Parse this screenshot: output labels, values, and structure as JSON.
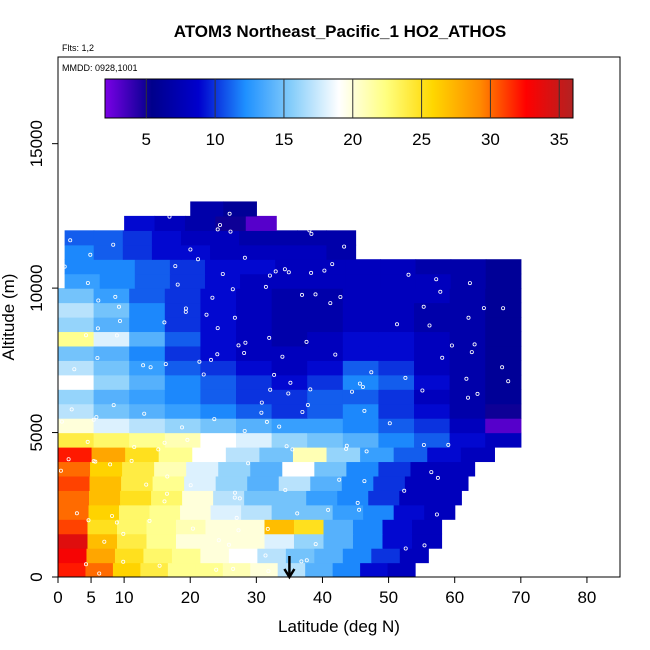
{
  "chart_data": {
    "type": "heatmap",
    "title": "ATOM3 Northeast_Pacific_1 HO2_ATHOS",
    "subtitle_lines": [
      "Flts: 1,2",
      "MMDD: 0928,1001"
    ],
    "xlabel": "Latitude (deg N)",
    "ylabel": "Altitude (m)",
    "xlim": [
      0,
      85
    ],
    "ylim": [
      0,
      18000
    ],
    "x_ticks": [
      0,
      5,
      10,
      20,
      30,
      40,
      50,
      60,
      70,
      80
    ],
    "y_ticks": [
      0,
      5000,
      10000,
      15000
    ],
    "colorbar": {
      "range": [
        2,
        36
      ],
      "ticks": [
        5,
        10,
        15,
        20,
        25,
        30,
        35
      ],
      "colors": [
        "#7a00e6",
        "#00008b",
        "#0000cd",
        "#1e90ff",
        "#87cefa",
        "#ffffff",
        "#ffff80",
        "#ffd700",
        "#ff8c00",
        "#ff0000",
        "#b22222"
      ],
      "placement": "top"
    },
    "arrow_marker_latitude": 35,
    "grid": false,
    "altitude_bins": [
      {
        "alt": 250,
        "lat_min": 0,
        "lat_max": 54,
        "values": [
          32,
          30,
          26,
          24,
          22,
          22,
          21,
          20,
          17,
          14,
          12,
          9,
          8
        ]
      },
      {
        "alt": 750,
        "lat_min": 0,
        "lat_max": 56,
        "values": [
          33,
          28,
          25,
          23,
          22,
          20,
          19,
          17,
          15,
          14,
          12,
          10,
          8
        ]
      },
      {
        "alt": 1250,
        "lat_min": 0,
        "lat_max": 58,
        "values": [
          34,
          27,
          24,
          22,
          20,
          20,
          20,
          18,
          16,
          14,
          12,
          9,
          8
        ]
      },
      {
        "alt": 1750,
        "lat_min": 0,
        "lat_max": 58,
        "values": [
          31,
          25,
          23,
          22,
          21,
          20,
          20,
          27,
          25,
          14,
          12,
          9,
          8
        ]
      },
      {
        "alt": 2250,
        "lat_min": 0,
        "lat_max": 60,
        "values": [
          30,
          26,
          23,
          22,
          20,
          18,
          17,
          15,
          15,
          13,
          12,
          9,
          8
        ]
      },
      {
        "alt": 2750,
        "lat_min": 0,
        "lat_max": 61,
        "values": [
          30,
          27,
          25,
          23,
          20,
          17,
          15,
          15,
          13,
          12,
          10,
          8,
          8
        ]
      },
      {
        "alt": 3250,
        "lat_min": 0,
        "lat_max": 62,
        "values": [
          31,
          27,
          24,
          22,
          18,
          16,
          14,
          17,
          14,
          12,
          10,
          8,
          8
        ]
      },
      {
        "alt": 3750,
        "lat_min": 0,
        "lat_max": 63,
        "values": [
          30,
          26,
          24,
          21,
          18,
          16,
          14,
          19,
          15,
          12,
          10,
          8,
          8
        ]
      },
      {
        "alt": 4250,
        "lat_min": 0,
        "lat_max": 66,
        "values": [
          32,
          28,
          25,
          22,
          19,
          17,
          15,
          21,
          16,
          13,
          11,
          9,
          8
        ]
      },
      {
        "alt": 4750,
        "lat_min": 0,
        "lat_max": 70,
        "values": [
          24,
          23,
          22,
          21,
          19,
          18,
          16,
          15,
          14,
          12,
          11,
          9,
          8
        ]
      },
      {
        "alt": 5250,
        "lat_min": 0,
        "lat_max": 70,
        "values": [
          20,
          18,
          17,
          16,
          15,
          14,
          13,
          13,
          12,
          11,
          10,
          8,
          3
        ]
      },
      {
        "alt": 5750,
        "lat_min": 0,
        "lat_max": 70,
        "values": [
          17,
          15,
          14,
          13,
          12,
          11,
          10,
          11,
          12,
          10,
          9,
          7,
          5
        ]
      },
      {
        "alt": 6250,
        "lat_min": 0,
        "lat_max": 70,
        "values": [
          16,
          14,
          13,
          12,
          11,
          10,
          10,
          11,
          11,
          10,
          8,
          7,
          6
        ]
      },
      {
        "alt": 6750,
        "lat_min": 0,
        "lat_max": 70,
        "values": [
          19,
          16,
          14,
          12,
          11,
          10,
          9,
          10,
          12,
          11,
          9,
          7,
          6
        ]
      },
      {
        "alt": 7250,
        "lat_min": 0,
        "lat_max": 70,
        "values": [
          17,
          15,
          13,
          11,
          10,
          9,
          8,
          9,
          11,
          10,
          8,
          7,
          6
        ]
      },
      {
        "alt": 7750,
        "lat_min": 0,
        "lat_max": 70,
        "values": [
          15,
          14,
          12,
          10,
          9,
          8,
          8,
          8,
          9,
          9,
          8,
          7,
          6
        ]
      },
      {
        "alt": 8250,
        "lat_min": 0,
        "lat_max": 70,
        "values": [
          22,
          18,
          14,
          11,
          9,
          8,
          7,
          8,
          9,
          9,
          8,
          7,
          6
        ]
      },
      {
        "alt": 8750,
        "lat_min": 0,
        "lat_max": 70,
        "values": [
          16,
          14,
          12,
          10,
          9,
          8,
          7,
          7,
          8,
          8,
          7,
          7,
          6
        ]
      },
      {
        "alt": 9250,
        "lat_min": 0,
        "lat_max": 70,
        "values": [
          17,
          15,
          12,
          10,
          9,
          8,
          7,
          7,
          8,
          8,
          7,
          7,
          6
        ]
      },
      {
        "alt": 9750,
        "lat_min": 0,
        "lat_max": 70,
        "values": [
          15,
          13,
          11,
          10,
          9,
          8,
          7,
          7,
          8,
          8,
          8,
          7,
          6
        ]
      },
      {
        "alt": 10250,
        "lat_min": 1,
        "lat_max": 70,
        "values": [
          13,
          12,
          11,
          10,
          9,
          8,
          8,
          8,
          8,
          8,
          8,
          7,
          6
        ]
      },
      {
        "alt": 10750,
        "lat_min": 1,
        "lat_max": 70,
        "values": [
          12,
          12,
          11,
          10,
          9,
          9,
          8,
          8,
          8,
          8,
          7,
          7,
          6
        ]
      },
      {
        "alt": 11250,
        "lat_min": 1,
        "lat_max": 45,
        "values": [
          12,
          11,
          10,
          9,
          9,
          8,
          8,
          8,
          8,
          7
        ]
      },
      {
        "alt": 11750,
        "lat_min": 1,
        "lat_max": 45,
        "values": [
          11,
          11,
          10,
          9,
          8,
          8,
          7,
          7,
          7,
          7
        ]
      },
      {
        "alt": 12250,
        "lat_min": 10,
        "lat_max": 33,
        "values": [
          9,
          8,
          7,
          5,
          3
        ]
      },
      {
        "alt": 12750,
        "lat_min": 20,
        "lat_max": 30,
        "values": [
          7,
          6
        ]
      }
    ]
  }
}
